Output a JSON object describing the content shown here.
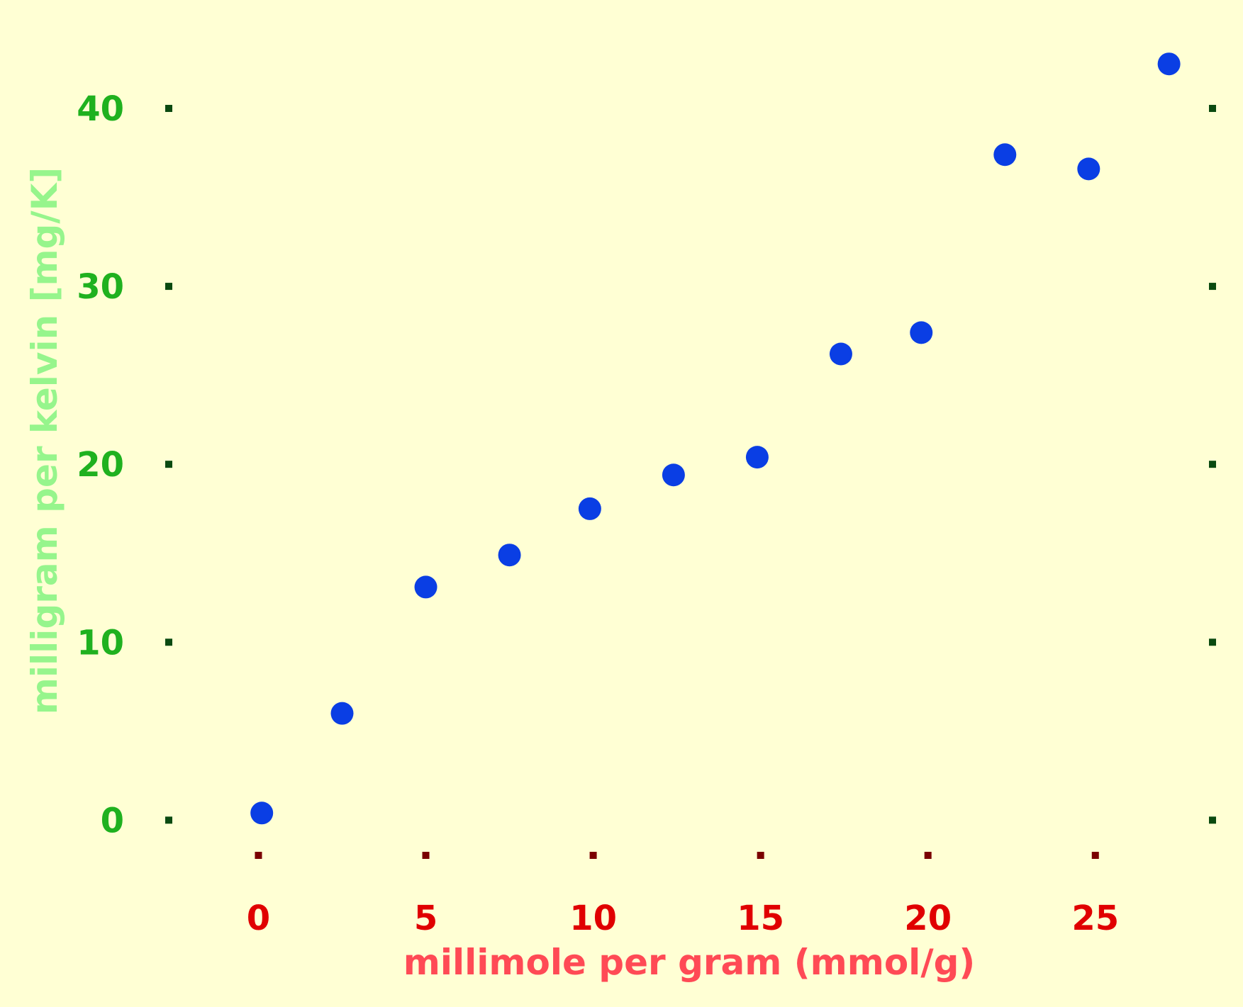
{
  "colors": {
    "background": "#ffffd4",
    "point": "#0a3ee4",
    "x_tick_label": "#e00000",
    "x_tick_mark": "#7a0000",
    "x_axis_title": "#ff4a55",
    "y_tick_label": "#1fb11f",
    "y_tick_mark": "#0a4a10",
    "y_axis_title": "#96f58c"
  },
  "chart_data": {
    "type": "scatter",
    "title": "",
    "xlabel": "millimole per gram (mmol/g)",
    "ylabel": "milligram per kelvin [mg/K]",
    "xlim": [
      -2.7,
      28.5
    ],
    "ylim": [
      -1.5,
      44.5
    ],
    "xticks": [
      0,
      5,
      10,
      15,
      20,
      25
    ],
    "yticks": [
      0,
      10,
      20,
      30,
      40
    ],
    "grid": false,
    "legend": "none",
    "series": [
      {
        "x": [
          0.1,
          2.5,
          5.0,
          7.5,
          9.9,
          12.4,
          14.9,
          17.4,
          19.8,
          22.3,
          24.8,
          27.2
        ],
        "y": [
          0.4,
          6.0,
          13.1,
          14.9,
          17.5,
          19.4,
          20.4,
          26.2,
          27.4,
          37.4,
          36.6,
          42.5
        ]
      }
    ]
  }
}
